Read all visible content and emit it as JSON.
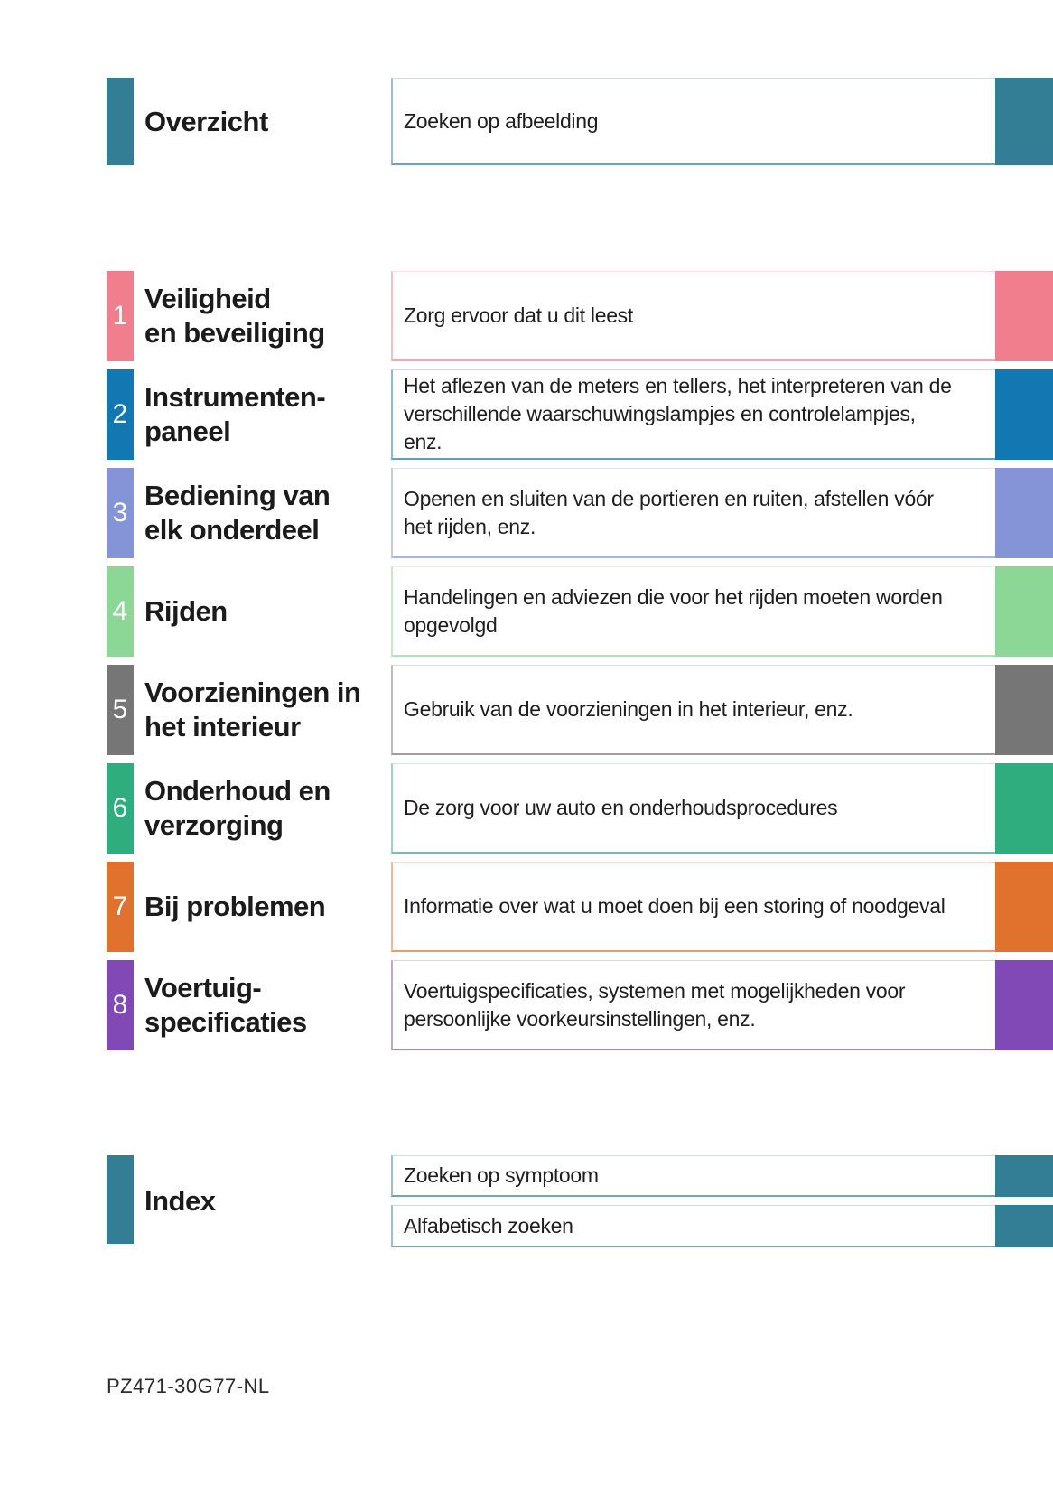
{
  "theme": {
    "accent": "#337E95"
  },
  "header": {
    "title": "Overzicht",
    "description": "Zoeken op afbeelding"
  },
  "sections": [
    {
      "number": "1",
      "color": "#F07E8C",
      "title": "Veiligheid\nen beveiliging",
      "description": "Zorg ervoor dat u dit leest"
    },
    {
      "number": "2",
      "color": "#1377B1",
      "title": "Instrumenten-\npaneel",
      "description": "Het aflezen van de meters en tellers, het interpreteren van de\nverschillende waarschuwingslampjes en controlelampjes,\nenz."
    },
    {
      "number": "3",
      "color": "#8494D6",
      "title": "Bediening van\nelk onderdeel",
      "description": "Openen en sluiten van de portieren en ruiten, afstellen vóór\nhet rijden, enz."
    },
    {
      "number": "4",
      "color": "#8CD696",
      "title": "Rijden",
      "description": "Handelingen en adviezen die voor het rijden moeten worden\nopgevolgd"
    },
    {
      "number": "5",
      "color": "#767676",
      "title": "Voorzieningen in\nhet interieur",
      "description": "Gebruik van de voorzieningen in het interieur, enz."
    },
    {
      "number": "6",
      "color": "#2FAD7E",
      "title": "Onderhoud en\nverzorging",
      "description": "De zorg voor uw auto en onderhoudsprocedures"
    },
    {
      "number": "7",
      "color": "#E0722E",
      "title": "Bij problemen",
      "description": "Informatie over wat u moet doen bij een storing of noodgeval"
    },
    {
      "number": "8",
      "color": "#8149B5",
      "title": "Voertuig-\nspecificaties",
      "description": "Voertuigspecificaties, systemen met mogelijkheden voor\npersoonlijke voorkeursinstellingen, enz."
    }
  ],
  "index": {
    "title": "Index",
    "items": [
      "Zoeken op symptoom",
      "Alfabetisch zoeken"
    ]
  },
  "footer": {
    "code": "PZ471-30G77-NL"
  }
}
